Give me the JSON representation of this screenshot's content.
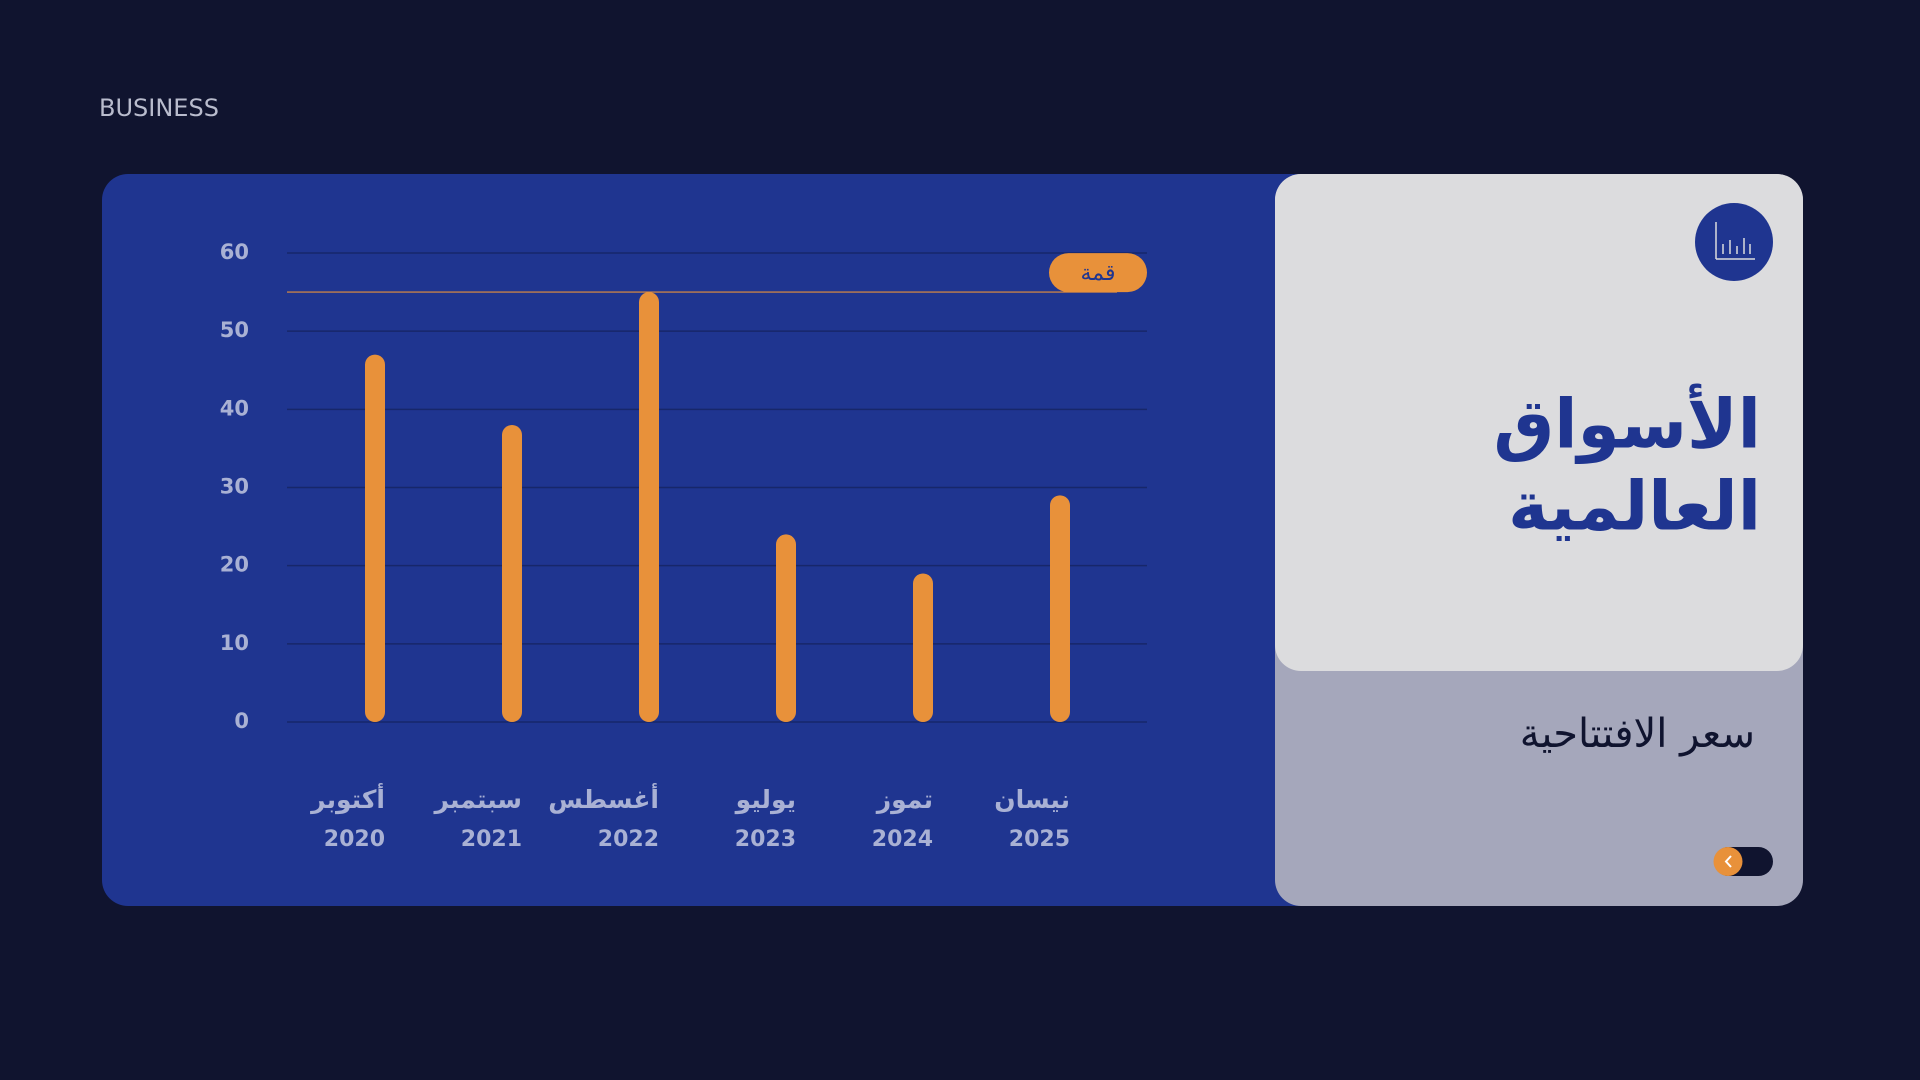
{
  "header": {
    "label": "BUSINESS"
  },
  "chart_data": {
    "type": "bar",
    "categories": [
      "أكتوبر",
      "سبتمبر",
      "أغسطس",
      "يوليو",
      "تموز",
      "نيسان"
    ],
    "sublabels": [
      "2020",
      "2021",
      "2022",
      "2023",
      "2024",
      "2025"
    ],
    "values": [
      47,
      38,
      55,
      24,
      19,
      29
    ],
    "color": "#e8913a",
    "ylim": [
      0,
      60
    ],
    "yticks": [
      0,
      10,
      20,
      30,
      40,
      50,
      60
    ],
    "grid": true,
    "peak_label": "قمة"
  },
  "card": {
    "title": [
      "الأسواق",
      "العالمية"
    ],
    "subtitle": "سعر الافتتاحية"
  }
}
